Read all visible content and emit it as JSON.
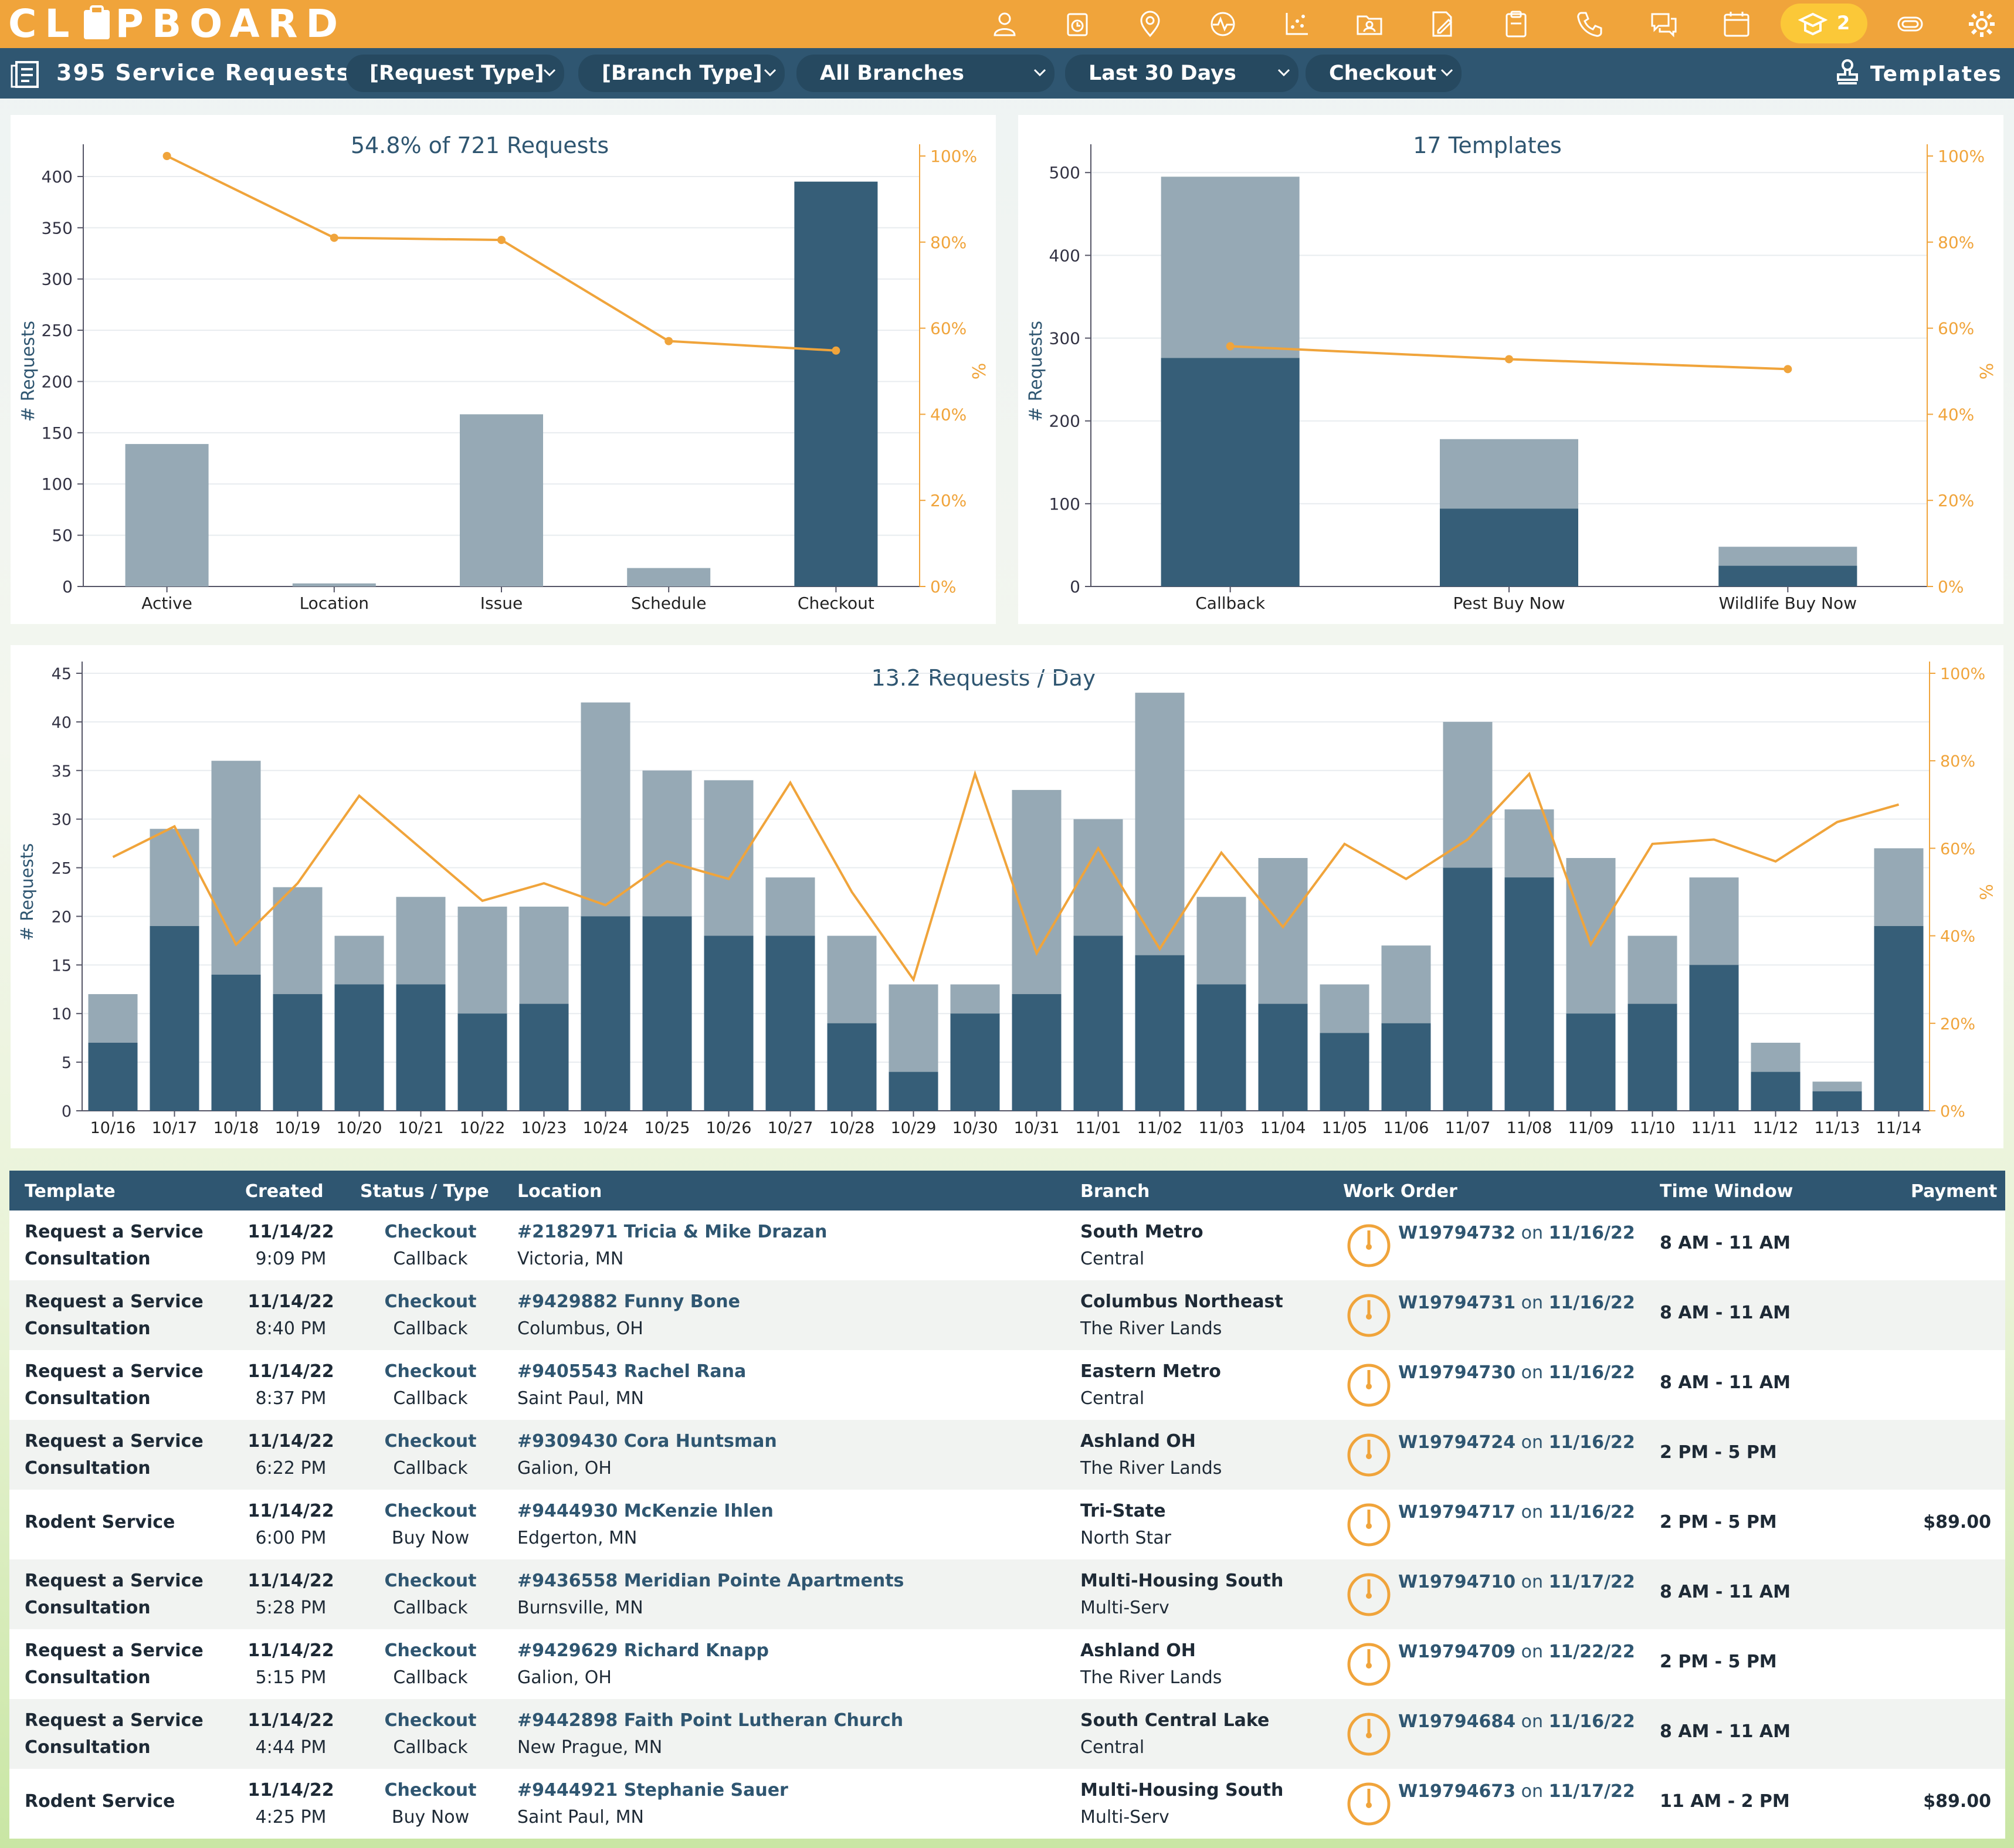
{
  "app": {
    "logo": "CLIPBOARD"
  },
  "topbar": {
    "icons": [
      "person-icon",
      "timer-icon",
      "location-pin-icon",
      "activity-icon",
      "scatter-icon",
      "contact-folder-icon",
      "edit-document-icon",
      "clipboard-icon",
      "phone-icon",
      "chat-icon",
      "calendar-icon",
      "training-cap-icon",
      "link-icon",
      "gear-icon"
    ],
    "badge_count": "2"
  },
  "filterbar": {
    "title": "395 Service Requests",
    "filters": [
      "[Request Type]",
      "[Branch Type]",
      "All Branches",
      "Last 30 Days",
      "Checkout"
    ],
    "templates_label": "Templates"
  },
  "colors": {
    "accent": "#f0a43b",
    "navy": "#365e78",
    "light_bar": "#96a9b5",
    "line": "#f0a43b"
  },
  "charts": {
    "funnel_title": "54.8% of 721 Requests",
    "templates_title": "17 Templates",
    "daily_title": "13.2 Requests / Day",
    "ylabel": "# Requests",
    "y2label": "%"
  },
  "chart_data": [
    {
      "type": "bar",
      "title": "54.8% of 721 Requests",
      "ylabel": "# Requests",
      "y2label": "%",
      "ylim": [
        0,
        420
      ],
      "y2lim": [
        0,
        100
      ],
      "categories": [
        "Active",
        "Location",
        "Issue",
        "Schedule",
        "Checkout"
      ],
      "series": [
        {
          "values": [
            139,
            3,
            168,
            18,
            395
          ]
        },
        {
          "type": "line",
          "values": [
            100,
            81,
            80.5,
            57,
            54.8
          ]
        }
      ]
    },
    {
      "type": "bar",
      "title": "17 Templates",
      "ylabel": "# Requests",
      "y2label": "%",
      "ylim": [
        0,
        520
      ],
      "y2lim": [
        0,
        100
      ],
      "categories": [
        "Callback",
        "Pest Buy Now",
        "Wildlife Buy Now"
      ],
      "series": [
        {
          "values": [
            495,
            178,
            48
          ]
        },
        {
          "values": [
            276,
            94,
            25
          ]
        },
        {
          "type": "line",
          "values": [
            55.8,
            52.8,
            50.5
          ]
        }
      ]
    },
    {
      "type": "bar",
      "title": "13.2 Requests / Day",
      "ylabel": "# Requests",
      "y2label": "%",
      "ylim": [
        0,
        45
      ],
      "y2lim": [
        0,
        100
      ],
      "categories": [
        "10/16",
        "10/17",
        "10/18",
        "10/19",
        "10/20",
        "10/21",
        "10/22",
        "10/23",
        "10/24",
        "10/25",
        "10/26",
        "10/27",
        "10/28",
        "10/29",
        "10/30",
        "10/31",
        "11/01",
        "11/02",
        "11/03",
        "11/04",
        "11/05",
        "11/06",
        "11/07",
        "11/08",
        "11/09",
        "11/10",
        "11/11",
        "11/12",
        "11/13",
        "11/14"
      ],
      "series": [
        {
          "values": [
            12,
            29,
            36,
            23,
            18,
            22,
            21,
            21,
            42,
            35,
            34,
            24,
            18,
            13,
            13,
            33,
            30,
            43,
            22,
            26,
            13,
            17,
            40,
            31,
            26,
            18,
            24,
            7,
            3,
            27
          ]
        },
        {
          "values": [
            7,
            19,
            14,
            12,
            13,
            13,
            10,
            11,
            20,
            20,
            18,
            18,
            9,
            4,
            10,
            12,
            18,
            16,
            13,
            11,
            8,
            9,
            25,
            24,
            10,
            11,
            15,
            4,
            2,
            19
          ]
        },
        {
          "type": "line",
          "values": [
            58,
            65,
            38,
            52,
            72,
            60,
            48,
            52,
            47,
            57,
            53,
            75,
            50,
            30,
            77,
            36,
            60,
            37,
            59,
            42,
            61,
            53,
            62,
            77,
            38,
            61,
            62,
            57,
            66,
            70
          ]
        }
      ]
    }
  ],
  "table": {
    "headers": [
      "Template",
      "Created",
      "Status / Type",
      "Location",
      "Branch",
      "Work Order",
      "Time Window",
      "Payment"
    ],
    "rows": [
      {
        "template": [
          "Request a Service",
          "Consultation"
        ],
        "date": "11/14/22",
        "time": "9:09 PM",
        "status": "Checkout",
        "type": "Callback",
        "loc_name": "#2182971 Tricia & Mike Drazan",
        "loc_city": "Victoria, MN",
        "branch": "South Metro",
        "region": "Central",
        "wo": "W19794732",
        "wo_on": "on",
        "wo_date": "11/16/22",
        "window": "8 AM - 11 AM",
        "payment": ""
      },
      {
        "template": [
          "Request a Service",
          "Consultation"
        ],
        "date": "11/14/22",
        "time": "8:40 PM",
        "status": "Checkout",
        "type": "Callback",
        "loc_name": "#9429882 Funny Bone",
        "loc_city": "Columbus, OH",
        "branch": "Columbus Northeast",
        "region": "The River Lands",
        "wo": "W19794731",
        "wo_on": "on",
        "wo_date": "11/16/22",
        "window": "8 AM - 11 AM",
        "payment": ""
      },
      {
        "template": [
          "Request a Service",
          "Consultation"
        ],
        "date": "11/14/22",
        "time": "8:37 PM",
        "status": "Checkout",
        "type": "Callback",
        "loc_name": "#9405543 Rachel Rana",
        "loc_city": "Saint Paul, MN",
        "branch": "Eastern Metro",
        "region": "Central",
        "wo": "W19794730",
        "wo_on": "on",
        "wo_date": "11/16/22",
        "window": "8 AM - 11 AM",
        "payment": ""
      },
      {
        "template": [
          "Request a Service",
          "Consultation"
        ],
        "date": "11/14/22",
        "time": "6:22 PM",
        "status": "Checkout",
        "type": "Callback",
        "loc_name": "#9309430 Cora Huntsman",
        "loc_city": "Galion, OH",
        "branch": "Ashland OH",
        "region": "The River Lands",
        "wo": "W19794724",
        "wo_on": "on",
        "wo_date": "11/16/22",
        "window": "2 PM - 5 PM",
        "payment": ""
      },
      {
        "template": [
          "Rodent Service"
        ],
        "date": "11/14/22",
        "time": "6:00 PM",
        "status": "Checkout",
        "type": "Buy Now",
        "loc_name": "#9444930 McKenzie Ihlen",
        "loc_city": "Edgerton, MN",
        "branch": "Tri-State",
        "region": "North Star",
        "wo": "W19794717",
        "wo_on": "on",
        "wo_date": "11/16/22",
        "window": "2 PM - 5 PM",
        "payment": "$89.00"
      },
      {
        "template": [
          "Request a Service",
          "Consultation"
        ],
        "date": "11/14/22",
        "time": "5:28 PM",
        "status": "Checkout",
        "type": "Callback",
        "loc_name": "#9436558 Meridian Pointe Apartments",
        "loc_city": "Burnsville, MN",
        "branch": "Multi-Housing South",
        "region": "Multi-Serv",
        "wo": "W19794710",
        "wo_on": "on",
        "wo_date": "11/17/22",
        "window": "8 AM - 11 AM",
        "payment": ""
      },
      {
        "template": [
          "Request a Service",
          "Consultation"
        ],
        "date": "11/14/22",
        "time": "5:15 PM",
        "status": "Checkout",
        "type": "Callback",
        "loc_name": "#9429629 Richard Knapp",
        "loc_city": "Galion, OH",
        "branch": "Ashland OH",
        "region": "The River Lands",
        "wo": "W19794709",
        "wo_on": "on",
        "wo_date": "11/22/22",
        "window": "2 PM - 5 PM",
        "payment": ""
      },
      {
        "template": [
          "Request a Service",
          "Consultation"
        ],
        "date": "11/14/22",
        "time": "4:44 PM",
        "status": "Checkout",
        "type": "Callback",
        "loc_name": "#9442898 Faith Point Lutheran Church",
        "loc_city": "New Prague, MN",
        "branch": "South Central Lake",
        "region": "Central",
        "wo": "W19794684",
        "wo_on": "on",
        "wo_date": "11/16/22",
        "window": "8 AM - 11 AM",
        "payment": ""
      },
      {
        "template": [
          "Rodent Service"
        ],
        "date": "11/14/22",
        "time": "4:25 PM",
        "status": "Checkout",
        "type": "Buy Now",
        "loc_name": "#9444921 Stephanie Sauer",
        "loc_city": "Saint Paul, MN",
        "branch": "Multi-Housing South",
        "region": "Multi-Serv",
        "wo": "W19794673",
        "wo_on": "on",
        "wo_date": "11/17/22",
        "window": "11 AM - 2 PM",
        "payment": "$89.00"
      }
    ]
  }
}
